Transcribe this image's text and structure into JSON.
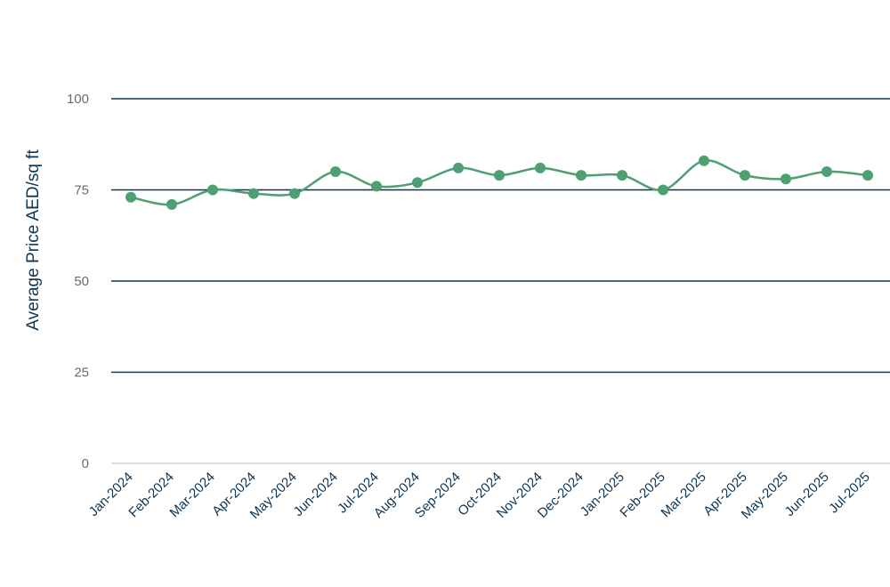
{
  "chart_data": {
    "type": "line",
    "categories": [
      "Jan-2024",
      "Feb-2024",
      "Mar-2024",
      "Apr-2024",
      "May-2024",
      "Jun-2024",
      "Jul-2024",
      "Aug-2024",
      "Sep-2024",
      "Oct-2024",
      "Nov-2024",
      "Dec-2024",
      "Jan-2025",
      "Feb-2025",
      "Mar-2025",
      "Apr-2025",
      "May-2025",
      "Jun-2025",
      "Jul-2025"
    ],
    "series": [
      {
        "values": [
          73,
          71,
          75,
          74,
          74,
          80,
          76,
          77,
          81,
          79,
          81,
          79,
          79,
          75,
          83,
          79,
          78,
          80,
          79
        ]
      }
    ],
    "ylabel": "Average Price AED/sq ft",
    "ylim": [
      0,
      100
    ],
    "yticks": [
      0,
      25,
      50,
      75,
      100
    ],
    "grid": true,
    "colors": {
      "line": "#4e9f72",
      "grid": "#0f3553",
      "baseline": "#c8d0e6",
      "axis_text": "#0f3553",
      "ytick_text": "#6b6b6b"
    }
  }
}
